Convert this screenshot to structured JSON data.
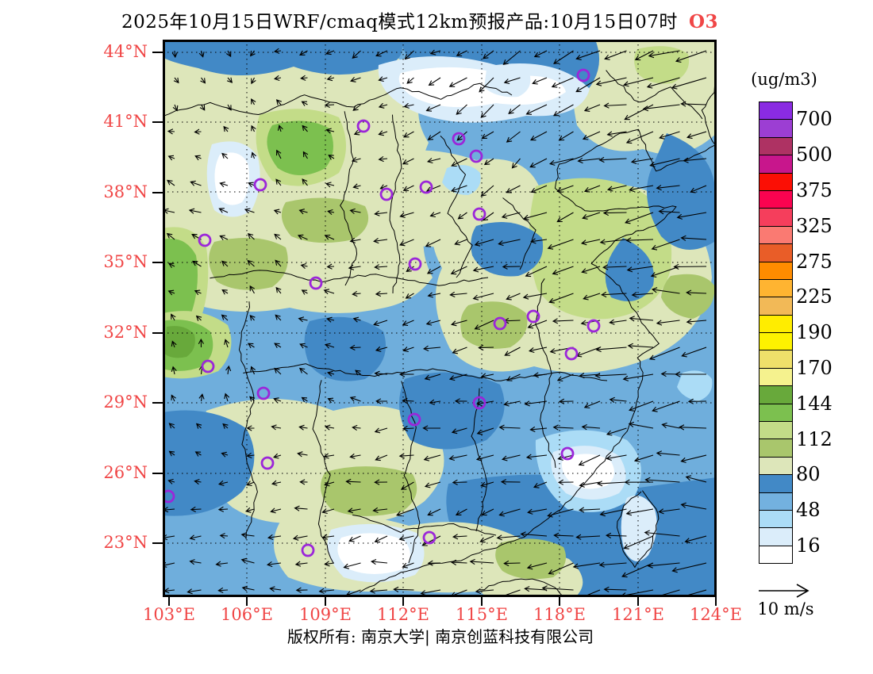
{
  "title": {
    "main": "2025年10月15日WRF/cmaq模式12km预报产品:10月15日07时",
    "species": "O3"
  },
  "colorbar": {
    "unit_label": "(ug/m3)",
    "tick_labels": [
      "700",
      "500",
      "375",
      "325",
      "275",
      "225",
      "190",
      "170",
      "144",
      "112",
      "80",
      "48",
      "16"
    ],
    "colors": [
      "#8A2BE2",
      "#9C3ED3",
      "#AE3263",
      "#C8168C",
      "#FB0F05",
      "#FA0350",
      "#F53E5C",
      "#FA7A72",
      "#E95D28",
      "#FF8C00",
      "#FFB431",
      "#F2B957",
      "#FFED00",
      "#FDF200",
      "#EFE06A",
      "#F5F28E",
      "#68A93B",
      "#7CC04F",
      "#C3DC88",
      "#A9C66C",
      "#DDE6BA",
      "#4289C6",
      "#73B1DF",
      "#ABDCF6",
      "#DBEDFA",
      "#FFFFFF"
    ]
  },
  "axes": {
    "label_color": "#F04646",
    "y_labels": [
      "44°N",
      "41°N",
      "38°N",
      "35°N",
      "32°N",
      "29°N",
      "26°N",
      "23°N"
    ],
    "x_labels": [
      "103°E",
      "106°E",
      "109°E",
      "112°E",
      "115°E",
      "118°E",
      "121°E",
      "124°E"
    ]
  },
  "wind_legend": {
    "label": "10 m/s"
  },
  "footer": {
    "copyright": "版权所有: 南京大学| 南京创蓝科技有限公司"
  },
  "map": {
    "marker_color": "#9B26D9",
    "city_markers": [
      [
        253,
        109
      ],
      [
        530,
        45
      ],
      [
        373,
        125
      ],
      [
        395,
        147
      ],
      [
        123,
        183
      ],
      [
        332,
        186
      ],
      [
        282,
        195
      ],
      [
        399,
        220
      ],
      [
        53,
        253
      ],
      [
        318,
        283
      ],
      [
        193,
        307
      ],
      [
        467,
        349
      ],
      [
        425,
        358
      ],
      [
        543,
        361
      ],
      [
        515,
        396
      ],
      [
        57,
        412
      ],
      [
        127,
        446
      ],
      [
        399,
        458
      ],
      [
        317,
        479
      ],
      [
        132,
        534
      ],
      [
        7,
        576
      ],
      [
        510,
        522
      ],
      [
        183,
        644
      ],
      [
        336,
        628
      ]
    ],
    "wind_field": {
      "reference_speed": "10 m/s",
      "control_points": [
        [
          660,
          60,
          -44,
          8
        ],
        [
          450,
          50,
          -22,
          14
        ],
        [
          250,
          40,
          -12,
          10
        ],
        [
          60,
          60,
          10,
          8
        ],
        [
          60,
          200,
          -14,
          -6
        ],
        [
          150,
          130,
          2,
          -16
        ],
        [
          420,
          130,
          -10,
          16
        ],
        [
          660,
          200,
          -30,
          6
        ],
        [
          660,
          330,
          -38,
          2
        ],
        [
          500,
          300,
          -30,
          6
        ],
        [
          330,
          300,
          -14,
          8
        ],
        [
          130,
          300,
          -6,
          -10
        ],
        [
          60,
          430,
          6,
          -14
        ],
        [
          230,
          430,
          -8,
          -8
        ],
        [
          420,
          430,
          -16,
          6
        ],
        [
          620,
          430,
          -34,
          4
        ],
        [
          130,
          560,
          -10,
          6
        ],
        [
          330,
          560,
          -14,
          8
        ],
        [
          530,
          560,
          -22,
          6
        ],
        [
          660,
          560,
          -38,
          -6
        ],
        [
          130,
          660,
          -14,
          -4
        ],
        [
          330,
          660,
          -22,
          4
        ],
        [
          530,
          670,
          -34,
          6
        ],
        [
          660,
          670,
          -40,
          10
        ]
      ]
    }
  }
}
